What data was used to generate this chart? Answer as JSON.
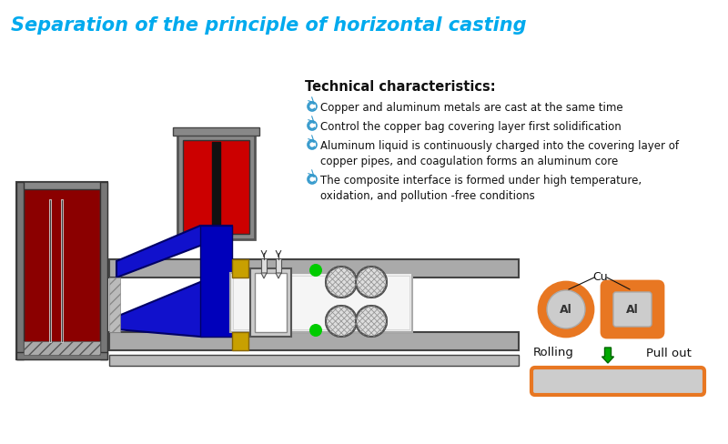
{
  "title": "Separation of the principle of horizontal casting",
  "title_color": "#00AAEE",
  "title_fontsize": 15,
  "bg_color": "#FFFFFF",
  "tech_title": "Technical characteristics:",
  "bullets": [
    "Copper and aluminum metals are cast at the same time",
    "Control the copper bag covering layer first solidification",
    "Aluminum liquid is continuously charged into the covering layer of\ncopper pipes, and coagulation forms an aluminum core",
    "The composite interface is formed under high temperature,\noxidation, and pollution -free conditions"
  ],
  "orange_color": "#E87722",
  "light_gray": "#CCCCCC",
  "dark_gray": "#666666",
  "mid_gray": "#999999",
  "red_color": "#CC0000",
  "dark_red": "#8B0000",
  "blue_color": "#1111CC",
  "green_color": "#00AA00",
  "gold_color": "#C8A000",
  "black_color": "#111111",
  "white_color": "#FFFFFF",
  "steel_color": "#AAAAAA",
  "charcoal": "#444444"
}
